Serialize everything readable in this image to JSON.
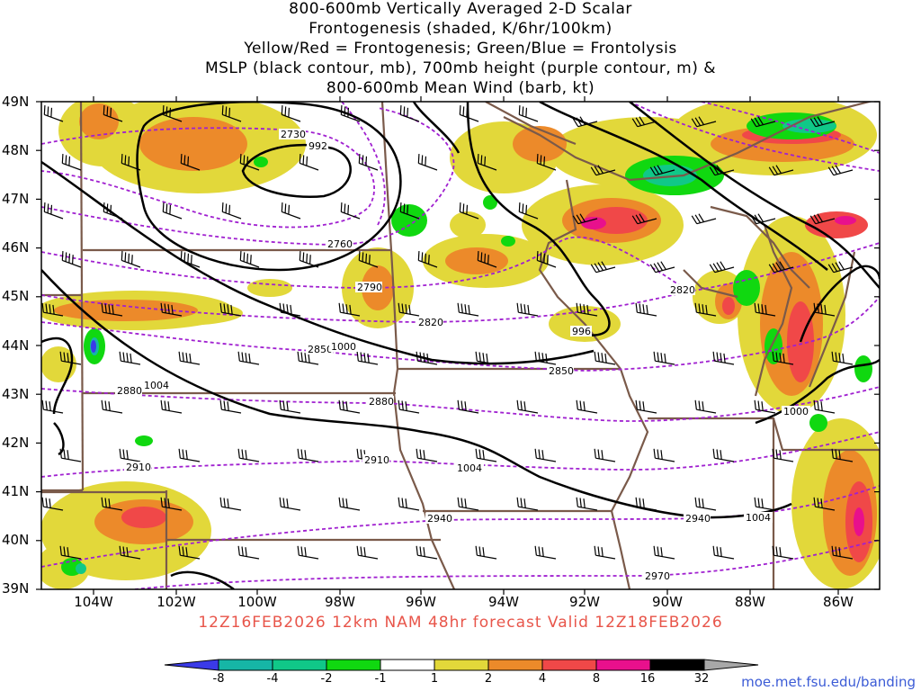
{
  "title_lines": [
    "800-600mb Vertically Averaged 2-D Scalar",
    "Frontogenesis (shaded, K/6hr/100km)",
    "Yellow/Red = Frontogenesis;  Green/Blue = Frontolysis",
    "MSLP (black contour, mb), 700mb height (purple contour, m) &",
    "800-600mb Mean Wind (barb, kt)"
  ],
  "lat_labels": [
    "49N",
    "48N",
    "47N",
    "46N",
    "45N",
    "44N",
    "43N",
    "42N",
    "41N",
    "40N",
    "39N"
  ],
  "lon_labels": [
    "104W",
    "102W",
    "100W",
    "98W",
    "96W",
    "94W",
    "92W",
    "90W",
    "88W",
    "86W"
  ],
  "valid_text": "12Z16FEB2026 12km NAM 48hr forecast Valid 12Z18FEB2026",
  "colorbar": {
    "labels": [
      "-8",
      "-4",
      "-2",
      "-1",
      "1",
      "2",
      "4",
      "8",
      "16",
      "32"
    ],
    "colors": [
      "#3a3ae8",
      "#16b6a6",
      "#10c888",
      "#10d810",
      "#ffffff",
      "#e2d83a",
      "#ec8a2a",
      "#f04848",
      "#e8108c",
      "#000000",
      "#a8a8a8"
    ]
  },
  "height_labels": [
    "2730",
    "2760",
    "2790",
    "2820",
    "2820",
    "2850",
    "2850",
    "2880",
    "2880",
    "2910",
    "2910",
    "2940",
    "2940",
    "2970"
  ],
  "mslp_labels": [
    "992",
    "996",
    "1000",
    "1000",
    "1004",
    "1004",
    "1004"
  ],
  "credit": "moe.met.fsu.edu/banding"
}
